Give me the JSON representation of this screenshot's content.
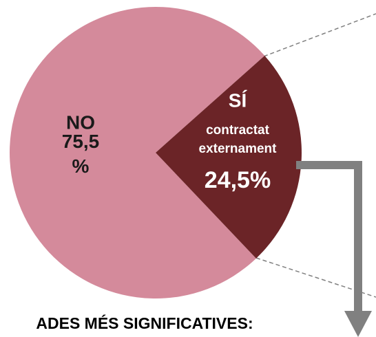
{
  "chart_data": {
    "type": "pie",
    "categories": [
      "NO",
      "SÍ"
    ],
    "values": [
      75.5,
      24.5
    ],
    "value_labels": [
      "75,5 %",
      "24,5%"
    ],
    "colors": [
      "#d48a9b",
      "#6b2427"
    ],
    "annotations": [
      {
        "text": "contractat externament"
      }
    ],
    "footer_text": "ADES MÉS SIGNIFICATIVES:"
  }
}
